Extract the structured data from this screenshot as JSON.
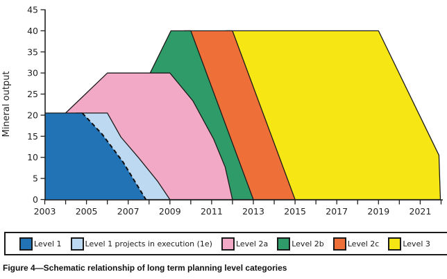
{
  "figure_caption": "Figure 4—Schematic relationship of long term planning level categories",
  "legend": {
    "items": [
      {
        "label": "Level 1",
        "color": "#2272B6"
      },
      {
        "label": "Level 1 projects in execution (1e)",
        "color": "#BCD9F1"
      },
      {
        "label": "Level 2a",
        "color": "#F2A9C6"
      },
      {
        "label": "Level 2b",
        "color": "#2F9B68"
      },
      {
        "label": "Level 2c",
        "color": "#EE7038"
      },
      {
        "label": "Level 3",
        "color": "#F5E614"
      }
    ]
  },
  "chart_data": {
    "type": "area",
    "title": "",
    "xlabel": "",
    "ylabel": "Mineral output",
    "ylim": [
      0,
      45
    ],
    "xlim": [
      2003,
      2022
    ],
    "grid": false,
    "legend_position": "bottom-box",
    "outline_color": "#1a1a1a",
    "y_ticks": [
      0,
      5,
      10,
      15,
      20,
      25,
      30,
      35,
      40,
      45
    ],
    "x_ticks": [
      2003,
      2004,
      2005,
      2006,
      2007,
      2008,
      2009,
      2010,
      2011,
      2012,
      2013,
      2014,
      2015,
      2016,
      2017,
      2018,
      2019,
      2020,
      2021,
      2022
    ],
    "x_label_years": [
      2003,
      2005,
      2007,
      2009,
      2011,
      2013,
      2015,
      2017,
      2019,
      2021
    ],
    "series": [
      {
        "name": "Level 3",
        "color": "#F5E614",
        "outlined": true,
        "points": [
          [
            2014.7,
            0
          ],
          [
            2011.7,
            40
          ],
          [
            2019,
            40
          ],
          [
            2021.9,
            10.5
          ],
          [
            2021.97,
            0
          ]
        ]
      },
      {
        "name": "Level 2c",
        "color": "#EE7038",
        "outlined": true,
        "points": [
          [
            2012.7,
            0
          ],
          [
            2009.7,
            40
          ],
          [
            2012,
            40
          ],
          [
            2015,
            0
          ]
        ]
      },
      {
        "name": "Level 2b",
        "color": "#2F9B68",
        "outlined": true,
        "points": [
          [
            2008.05,
            0
          ],
          [
            2008.05,
            30
          ],
          [
            2009.05,
            40
          ],
          [
            2010,
            40
          ],
          [
            2013,
            0
          ]
        ]
      },
      {
        "name": "Level 2a",
        "color": "#F2A9C6",
        "outlined": true,
        "points": [
          [
            2004,
            0
          ],
          [
            2004,
            20.5
          ],
          [
            2006,
            30
          ],
          [
            2009,
            30
          ],
          [
            2010.1,
            23.4
          ],
          [
            2011.1,
            14.3
          ],
          [
            2011.65,
            7.7
          ],
          [
            2012,
            0
          ]
        ]
      },
      {
        "name": "Level 1 projects in execution (1e)",
        "color": "#BCD9F1",
        "outlined": true,
        "points": [
          [
            2004.5,
            0
          ],
          [
            2004.5,
            20.5
          ],
          [
            2006,
            20.5
          ],
          [
            2006.65,
            14.8
          ],
          [
            2007.5,
            9.9
          ],
          [
            2008.4,
            4.4
          ],
          [
            2009,
            0
          ]
        ]
      },
      {
        "name": "Level 1",
        "color": "#2272B6",
        "outlined": false,
        "points": [
          [
            2003,
            0
          ],
          [
            2003,
            20.5
          ],
          [
            2004.8,
            20.5
          ],
          [
            2005.75,
            15.5
          ],
          [
            2006.75,
            8.9
          ],
          [
            2007.85,
            0
          ]
        ]
      }
    ],
    "level1_overlays": {
      "solid_top_edge": [
        [
          2003,
          20.5
        ],
        [
          2004.8,
          20.5
        ]
      ],
      "dashed_boundary": [
        [
          2004.8,
          20.5
        ],
        [
          2005.75,
          15.5
        ],
        [
          2006.75,
          8.9
        ],
        [
          2007.85,
          0
        ]
      ]
    }
  }
}
